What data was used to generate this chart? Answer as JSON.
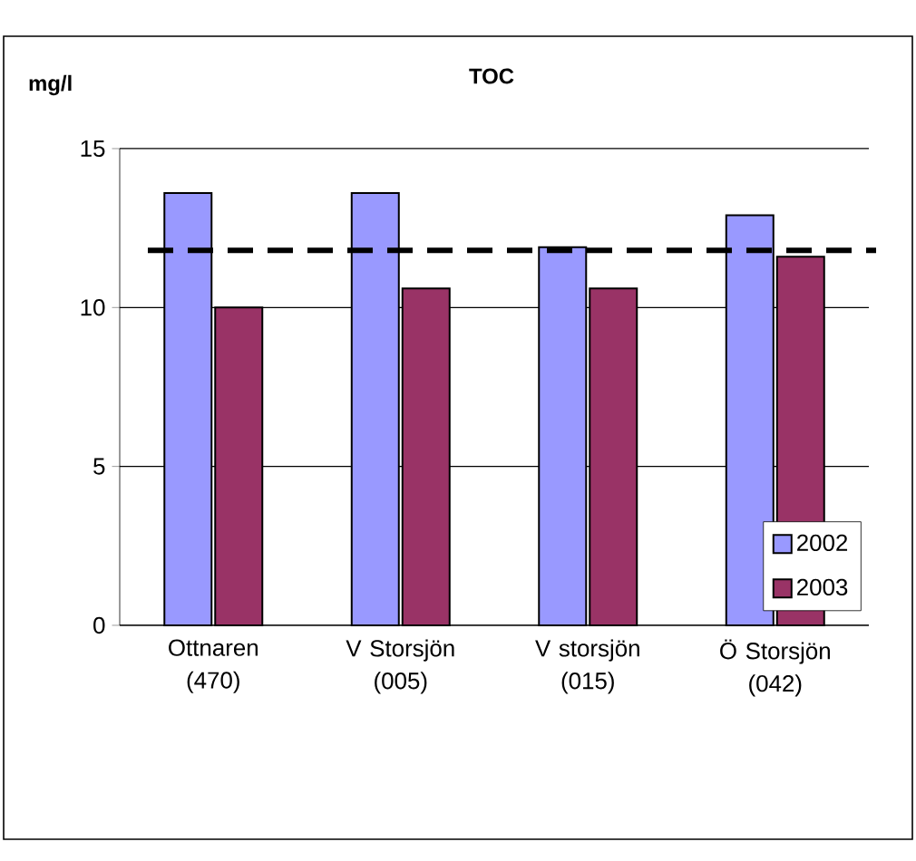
{
  "chart_data": {
    "type": "bar",
    "title": "TOC",
    "ylabel": "mg/l",
    "categories": [
      "Ottnaren (470)",
      "V Storsjön (005)",
      "V storsjön (015)",
      "Ö Storsjön (042)"
    ],
    "series": [
      {
        "name": "2002",
        "color": "#9999ff",
        "values": [
          13.6,
          13.6,
          11.9,
          12.9
        ]
      },
      {
        "name": "2003",
        "color": "#993366",
        "values": [
          10.0,
          10.6,
          10.6,
          11.6
        ]
      }
    ],
    "ylim": [
      0,
      15
    ],
    "yticks": [
      0,
      5,
      10,
      15
    ],
    "grid": "y",
    "legend": "bottom right",
    "ref_lines": [
      {
        "axis": "y",
        "value": 11.8,
        "line_style": "dashed",
        "color": "#000000"
      }
    ]
  }
}
